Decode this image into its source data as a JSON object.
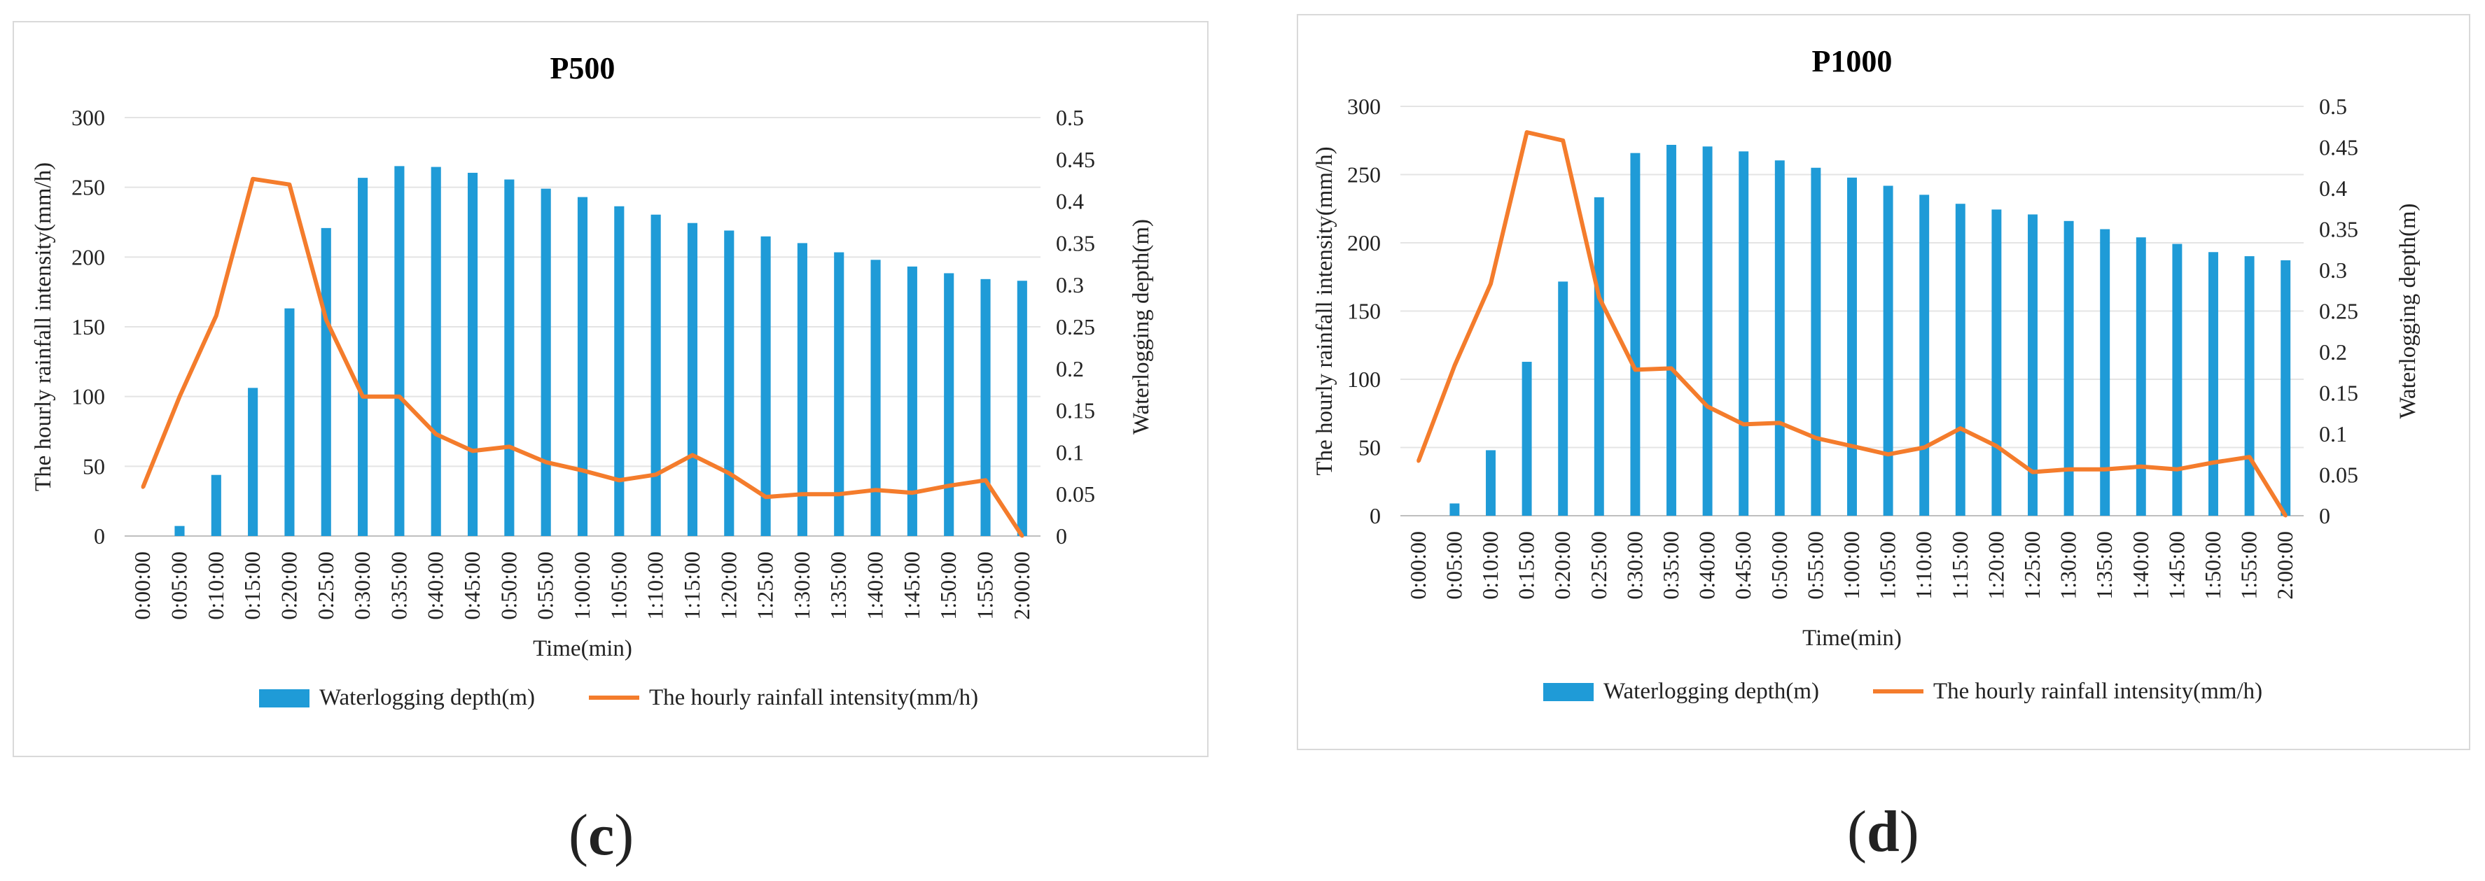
{
  "chart_data": [
    {
      "type": "bar",
      "panel_label": "c",
      "title": "P500",
      "xlabel": "Time(min)",
      "ylabel_left": "The hourly rainfall intensity(mm/h)",
      "ylabel_right": "Waterlogging depth(m)",
      "ylim_left": [
        0,
        300
      ],
      "yticks_left": [
        "0",
        "50",
        "100",
        "150",
        "200",
        "250",
        "300"
      ],
      "ylim_right": [
        0,
        0.5
      ],
      "yticks_right": [
        "0",
        "0.05",
        "0.1",
        "0.15",
        "0.2",
        "0.25",
        "0.3",
        "0.35",
        "0.4",
        "0.45",
        "0.5"
      ],
      "categories": [
        "0:00:00",
        "0:05:00",
        "0:10:00",
        "0:15:00",
        "0:20:00",
        "0:25:00",
        "0:30:00",
        "0:35:00",
        "0:40:00",
        "0:45:00",
        "0:50:00",
        "0:55:00",
        "1:00:00",
        "1:05:00",
        "1:10:00",
        "1:15:00",
        "1:20:00",
        "1:25:00",
        "1:30:00",
        "1:35:00",
        "1:40:00",
        "1:45:00",
        "1:50:00",
        "1:55:00",
        "2:00:00"
      ],
      "series": [
        {
          "name": "Waterlogging depth(m)",
          "kind": "bar",
          "axis": "right",
          "color": "#1f9bd7",
          "values": [
            0,
            0.012,
            0.073,
            0.177,
            0.272,
            0.368,
            0.428,
            0.442,
            0.441,
            0.434,
            0.426,
            0.415,
            0.405,
            0.394,
            0.384,
            0.374,
            0.365,
            0.358,
            0.35,
            0.339,
            0.33,
            0.322,
            0.314,
            0.307,
            0.305
          ]
        },
        {
          "name": "The hourly rainfall intensity(mm/h)",
          "kind": "line",
          "axis": "left",
          "color": "#f47c2c",
          "values": [
            35,
            100,
            158,
            256,
            252,
            155,
            100,
            100,
            73,
            61,
            64,
            53,
            47,
            40,
            44,
            58,
            45,
            28,
            30,
            30,
            33,
            31,
            36,
            40,
            0
          ]
        }
      ],
      "legend_position": "bottom"
    },
    {
      "type": "bar",
      "panel_label": "d",
      "title": "P1000",
      "xlabel": "Time(min)",
      "ylabel_left": "The hourly rainfall intensity(mm/h)",
      "ylabel_right": "Waterlogging depth(m)",
      "ylim_left": [
        0,
        300
      ],
      "yticks_left": [
        "0",
        "50",
        "100",
        "150",
        "200",
        "250",
        "300"
      ],
      "ylim_right": [
        0,
        0.5
      ],
      "yticks_right": [
        "0",
        "0.05",
        "0.1",
        "0.15",
        "0.2",
        "0.25",
        "0.3",
        "0.35",
        "0.4",
        "0.45",
        "0.5"
      ],
      "categories": [
        "0:00:00",
        "0:05:00",
        "0:10:00",
        "0:15:00",
        "0:20:00",
        "0:25:00",
        "0:30:00",
        "0:35:00",
        "0:40:00",
        "0:45:00",
        "0:50:00",
        "0:55:00",
        "1:00:00",
        "1:05:00",
        "1:10:00",
        "1:15:00",
        "1:20:00",
        "1:25:00",
        "1:30:00",
        "1:35:00",
        "1:40:00",
        "1:45:00",
        "1:50:00",
        "1:55:00",
        "2:00:00"
      ],
      "series": [
        {
          "name": "Waterlogging depth(m)",
          "kind": "bar",
          "axis": "right",
          "color": "#1f9bd7",
          "values": [
            0,
            0.015,
            0.08,
            0.188,
            0.286,
            0.389,
            0.443,
            0.453,
            0.451,
            0.445,
            0.434,
            0.425,
            0.413,
            0.403,
            0.392,
            0.381,
            0.374,
            0.368,
            0.36,
            0.35,
            0.34,
            0.332,
            0.322,
            0.317,
            0.312
          ]
        },
        {
          "name": "The hourly rainfall intensity(mm/h)",
          "kind": "line",
          "axis": "left",
          "color": "#f47c2c",
          "values": [
            40,
            110,
            170,
            281,
            275,
            160,
            107,
            108,
            80,
            67,
            68,
            57,
            51,
            45,
            50,
            64,
            51,
            32,
            34,
            34,
            36,
            34,
            39,
            43,
            0
          ]
        }
      ],
      "legend_position": "bottom"
    }
  ]
}
